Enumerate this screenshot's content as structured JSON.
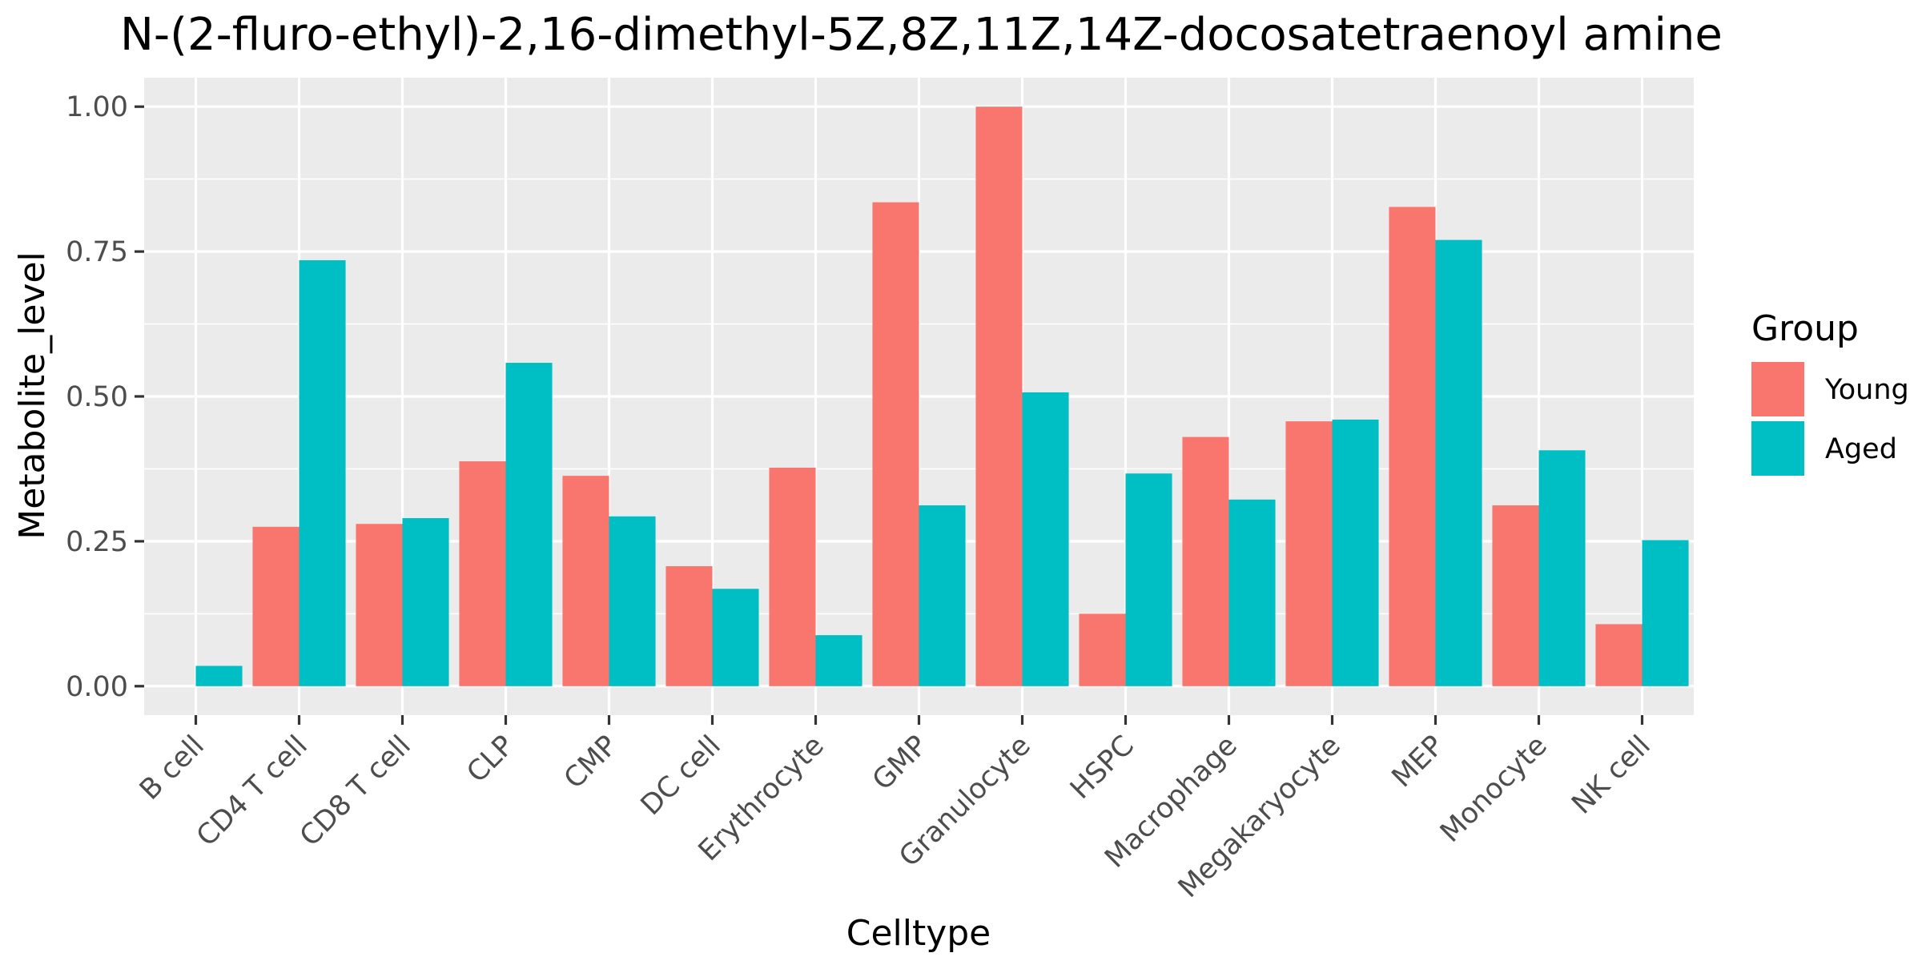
{
  "chart_data": {
    "type": "bar",
    "title": "N-(2-fluro-ethyl)-2,16-dimethyl-5Z,8Z,11Z,14Z-docosatetraenoyl amine",
    "xlabel": "Celltype",
    "ylabel": "Metabolite_level",
    "ylim": [
      -0.05,
      1.05
    ],
    "yticks": [
      0.0,
      0.25,
      0.5,
      0.75,
      1.0
    ],
    "ytick_labels": [
      "0.00",
      "0.25",
      "0.50",
      "0.75",
      "1.00"
    ],
    "grid": true,
    "legend": {
      "title": "Group",
      "position": "right"
    },
    "categories": [
      "B cell",
      "CD4 T cell",
      "CD8 T cell",
      "CLP",
      "CMP",
      "DC cell",
      "Erythrocyte",
      "GMP",
      "Granulocyte",
      "HSPC",
      "Macrophage",
      "Megakaryocyte",
      "MEP",
      "Monocyte",
      "NK cell"
    ],
    "series": [
      {
        "name": "Young",
        "color": "#F8766D",
        "values": [
          0.0,
          0.275,
          0.28,
          0.388,
          0.363,
          0.207,
          0.377,
          0.835,
          1.0,
          0.125,
          0.43,
          0.457,
          0.827,
          0.312,
          0.107
        ]
      },
      {
        "name": "Aged",
        "color": "#00BFC4",
        "values": [
          0.035,
          0.735,
          0.29,
          0.558,
          0.293,
          0.168,
          0.088,
          0.312,
          0.507,
          0.367,
          0.322,
          0.46,
          0.77,
          0.407,
          0.252
        ]
      }
    ]
  }
}
